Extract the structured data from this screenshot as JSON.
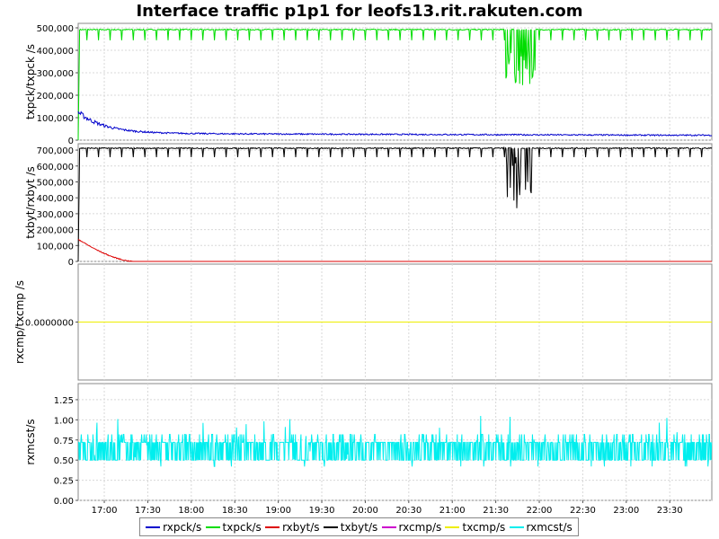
{
  "chart_data": {
    "title": "Interface traffic p1p1 for leofs13.rit.rakuten.com",
    "type": "line",
    "x_ticks": [
      "17:00",
      "17:30",
      "18:00",
      "18:30",
      "19:00",
      "19:30",
      "20:00",
      "20:30",
      "21:00",
      "21:30",
      "22:00",
      "22:30",
      "23:00",
      "23:30"
    ],
    "x_range": [
      "16:42",
      "23:59"
    ],
    "grid": true,
    "legend_placement": "bottom",
    "series": [
      {
        "name": "rxpck/s",
        "color": "#0000cc"
      },
      {
        "name": "txpck/s",
        "color": "#00dd00"
      },
      {
        "name": "rxbyt/s",
        "color": "#dd0000"
      },
      {
        "name": "txbyt/s",
        "color": "#000000"
      },
      {
        "name": "rxcmp/s",
        "color": "#cc00cc"
      },
      {
        "name": "txcmp/s",
        "color": "#eeee00"
      },
      {
        "name": "rxmcst/s",
        "color": "#00eeee"
      }
    ],
    "panels": [
      {
        "ylabel": "txpck/txpck /s",
        "ylim": [
          0,
          520000
        ],
        "y_ticks": [
          0,
          100000,
          200000,
          300000,
          400000,
          500000
        ],
        "y_tick_labels": [
          "0",
          "100,000",
          "200,000",
          "300,000",
          "400,000",
          "500,000"
        ],
        "lines": [
          {
            "series": "txpck/s",
            "baseline": 492000,
            "start_value": 0,
            "dip_to": 445000,
            "dips_every_min": 8,
            "burst": {
              "from": "21:37",
              "to": "21:57",
              "low": 235000
            }
          },
          {
            "series": "rxpck/s",
            "start_value": 125000,
            "decay_to": 30000,
            "end_value": 22000
          }
        ]
      },
      {
        "ylabel": "txbyt/rxbyt /s",
        "ylim": [
          0,
          740000
        ],
        "y_ticks": [
          0,
          100000,
          200000,
          300000,
          400000,
          500000,
          600000,
          700000
        ],
        "y_tick_labels": [
          "0",
          "100,000",
          "200,000",
          "300,000",
          "400,000",
          "500,000",
          "600,000",
          "700,000"
        ],
        "lines": [
          {
            "series": "txbyt/s",
            "baseline": 712000,
            "start_value": 0,
            "dip_to": 655000,
            "dips_every_min": 8,
            "burst": {
              "from": "21:37",
              "to": "21:57",
              "low": 330000
            }
          },
          {
            "series": "rxbyt/s",
            "start_value": 140000,
            "reach_zero": "17:20",
            "end_value": 0
          }
        ]
      },
      {
        "ylabel": "rxcmp/txcmp /s",
        "ylim": [
          -1,
          1
        ],
        "y_ticks": [
          0
        ],
        "y_tick_labels": [
          "0.0000000"
        ],
        "lines": [
          {
            "series": "rxcmp/s",
            "baseline": 0
          },
          {
            "series": "txcmp/s",
            "baseline": 0
          }
        ]
      },
      {
        "ylabel": "rxmcst/s",
        "ylim": [
          0,
          1.45
        ],
        "y_ticks": [
          0,
          0.25,
          0.5,
          0.75,
          1.0,
          1.25
        ],
        "y_tick_labels": [
          "0.00",
          "0.25",
          "0.50",
          "0.75",
          "1.00",
          "1.25"
        ],
        "lines": [
          {
            "series": "rxmcst/s",
            "band_low": 0.5,
            "band_high": 0.72,
            "peak": 0.82,
            "max": 1.05
          }
        ]
      }
    ]
  }
}
